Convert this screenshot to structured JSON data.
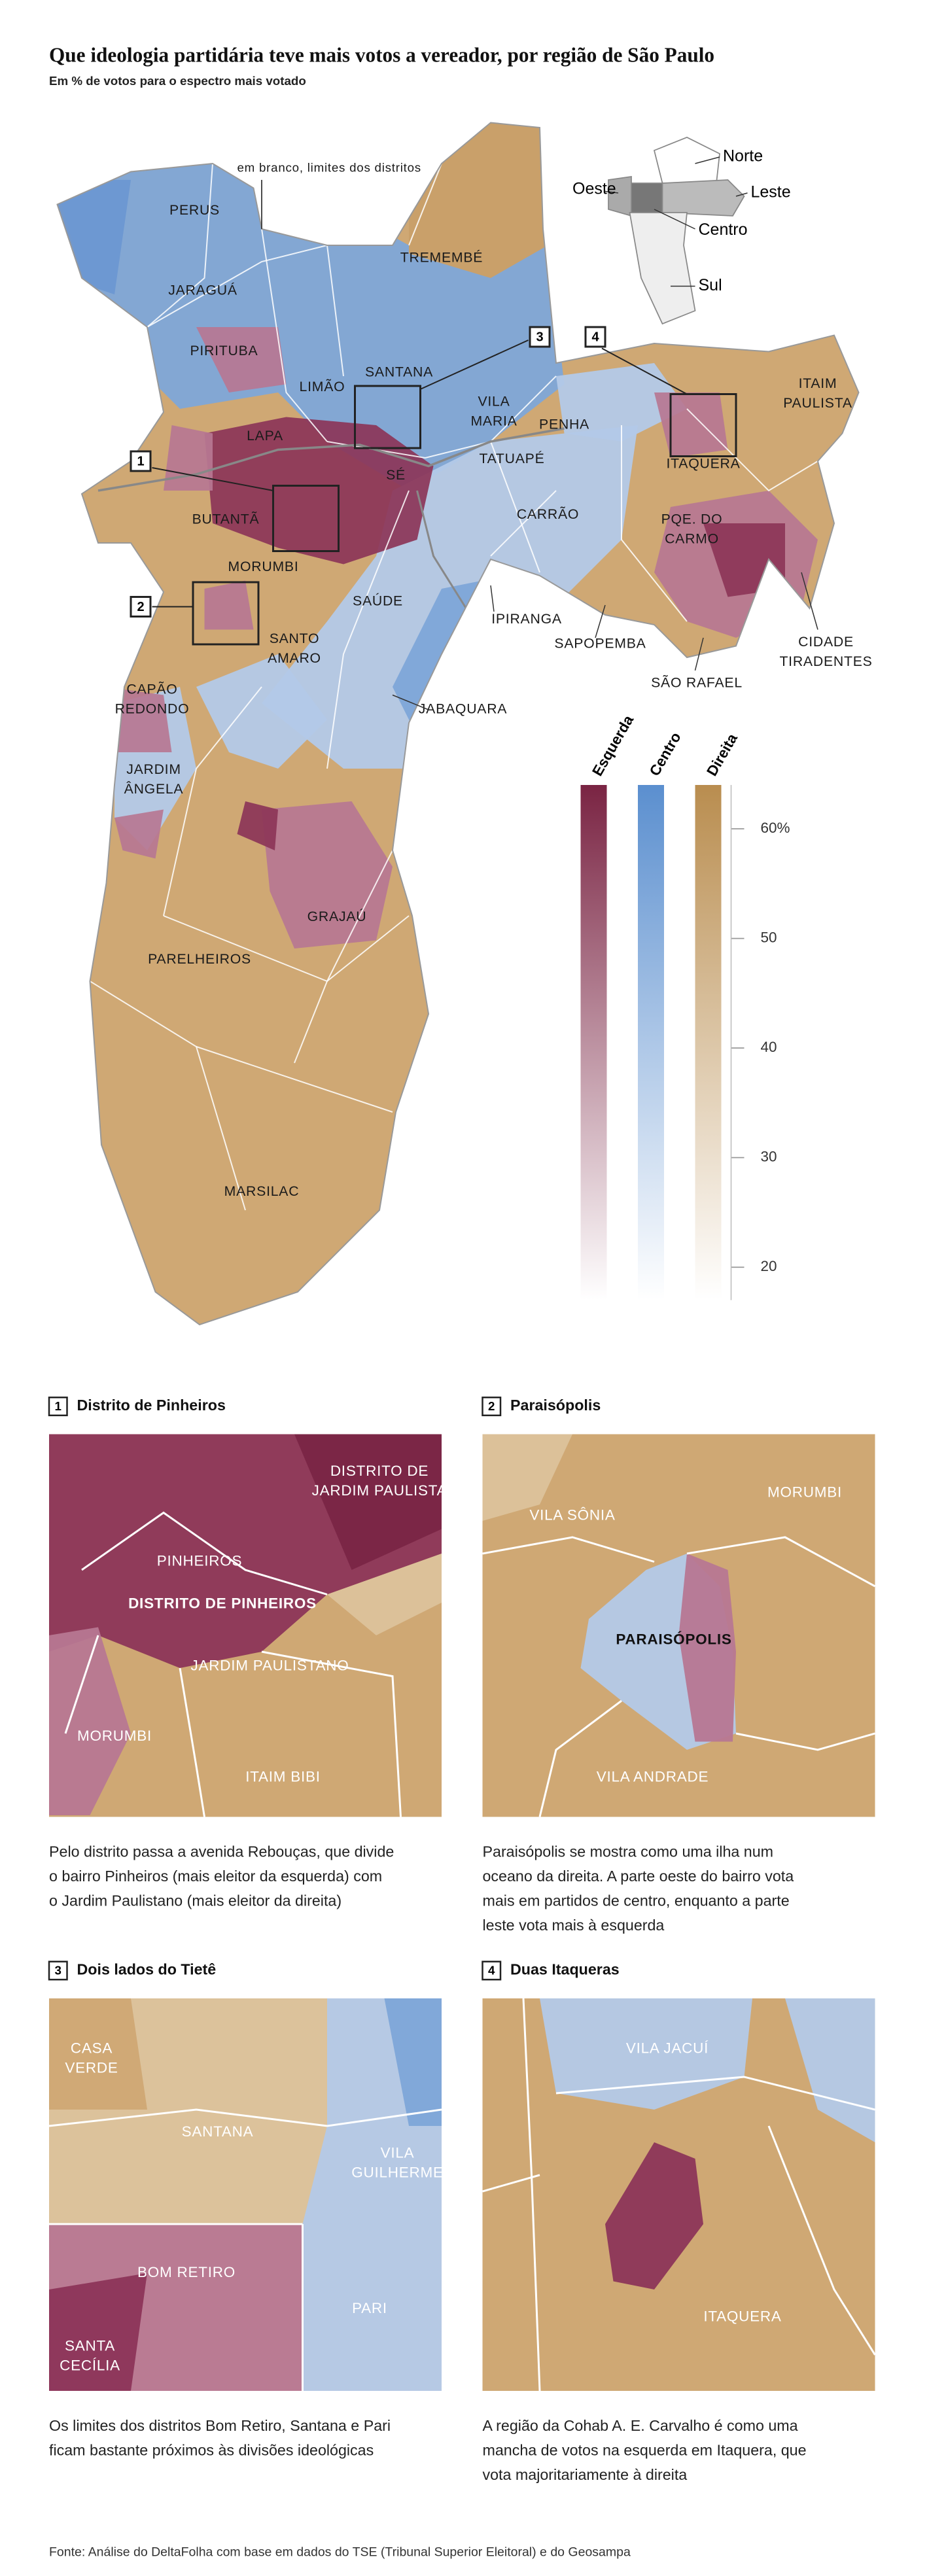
{
  "header": {
    "title": "Que ideologia partidária teve mais votos a vereador, por região de São Paulo",
    "subtitle": "Em % de votos para o espectro mais votado"
  },
  "map": {
    "annotation": "em branco, limites dos distritos",
    "labels": [
      [
        "PERUS"
      ],
      [
        "JARAGUÁ"
      ],
      [
        "PIRITUBA"
      ],
      [
        "TREMEMBÉ"
      ],
      [
        "LIMÃO"
      ],
      [
        "SANTANA"
      ],
      [
        "VILA",
        "MARIA"
      ],
      [
        "PENHA"
      ],
      [
        "ITAIM",
        "PAULISTA"
      ],
      [
        "LAPA"
      ],
      [
        "TATUAPÉ"
      ],
      [
        "SÉ"
      ],
      [
        "ITAQUERA"
      ],
      [
        "BUTANTÃ"
      ],
      [
        "CARRÃO"
      ],
      [
        "PQE. DO",
        "CARMO"
      ],
      [
        "MORUMBI"
      ],
      [
        "SAÚDE"
      ],
      [
        "IPIRANGA"
      ],
      [
        "SANTO",
        "AMARO"
      ],
      [
        "SAPOPEMBA"
      ],
      [
        "CIDADE",
        "TIRADENTES"
      ],
      [
        "SÃO RAFAEL"
      ],
      [
        "CAPÃO",
        "REDONDO"
      ],
      [
        "JABAQUARA"
      ],
      [
        "JARDIM",
        "ÂNGELA"
      ],
      [
        "GRAJAÚ"
      ],
      [
        "PARELHEIROS"
      ],
      [
        "MARSILAC"
      ]
    ],
    "markers": [
      "1",
      "2",
      "3",
      "4"
    ]
  },
  "locator": {
    "labels": [
      "Norte",
      "Oeste",
      "Leste",
      "Centro",
      "Sul"
    ]
  },
  "legend": {
    "headers": [
      "Esquerda",
      "Centro",
      "Direita"
    ],
    "colors": [
      "#7a2443",
      "#5b8fcf",
      "#b98d4f"
    ],
    "lim": [
      17,
      64
    ],
    "ticks": [
      {
        "value": 60,
        "label": "60%"
      },
      50,
      40,
      30,
      20
    ]
  },
  "insets": [
    {
      "number": "1",
      "title": "Distrito de Pinheiros",
      "labels": [
        [
          "PINHEIROS"
        ],
        [
          "DISTRITO DE",
          "JARDIM PAULISTA"
        ],
        [
          "DISTRITO DE PINHEIROS"
        ],
        [
          "JARDIM PAULISTANO"
        ],
        [
          "MORUMBI"
        ],
        [
          "ITAIM BIBI"
        ]
      ],
      "caption": [
        "Pelo distrito passa a avenida Rebouças, que divide",
        "o bairro Pinheiros (mais eleitor da esquerda) com",
        "o Jardim Paulistano (mais eleitor da direita)"
      ]
    },
    {
      "number": "2",
      "title": "Paraisópolis",
      "labels": [
        [
          "VILA SÔNIA"
        ],
        [
          "MORUMBI"
        ],
        [
          "PARAISÓPOLIS"
        ],
        [
          "VILA ANDRADE"
        ]
      ],
      "caption": [
        "Paraisópolis se mostra como uma ilha num",
        "oceano da direita. A parte oeste do bairro vota",
        "mais em partidos de centro, enquanto a parte",
        "leste vota mais à esquerda"
      ]
    },
    {
      "number": "3",
      "title": "Dois lados do Tietê",
      "labels": [
        [
          "CASA",
          "VERDE"
        ],
        [
          "SANTANA"
        ],
        [
          "VILA",
          "GUILHERME"
        ],
        [
          "BOM RETIRO"
        ],
        [
          "PARI"
        ],
        [
          "SANTA",
          "CECÍLIA"
        ]
      ],
      "caption": [
        "Os limites dos distritos Bom Retiro, Santana e Pari",
        "ficam bastante próximos às divisões ideológicas"
      ]
    },
    {
      "number": "4",
      "title": "Duas Itaqueras",
      "labels": [
        [
          "VILA JACUÍ"
        ],
        [
          "ITAQUERA"
        ]
      ],
      "caption": [
        "A região da Cohab A. E. Carvalho é como uma",
        "mancha de votos na esquerda em Itaquera, que",
        "vota majoritariamente à direita"
      ]
    }
  ],
  "source": "Fonte: Análise do DeltaFolha com base em dados do TSE (Tribunal Superior Eleitoral) e do Geosampa"
}
